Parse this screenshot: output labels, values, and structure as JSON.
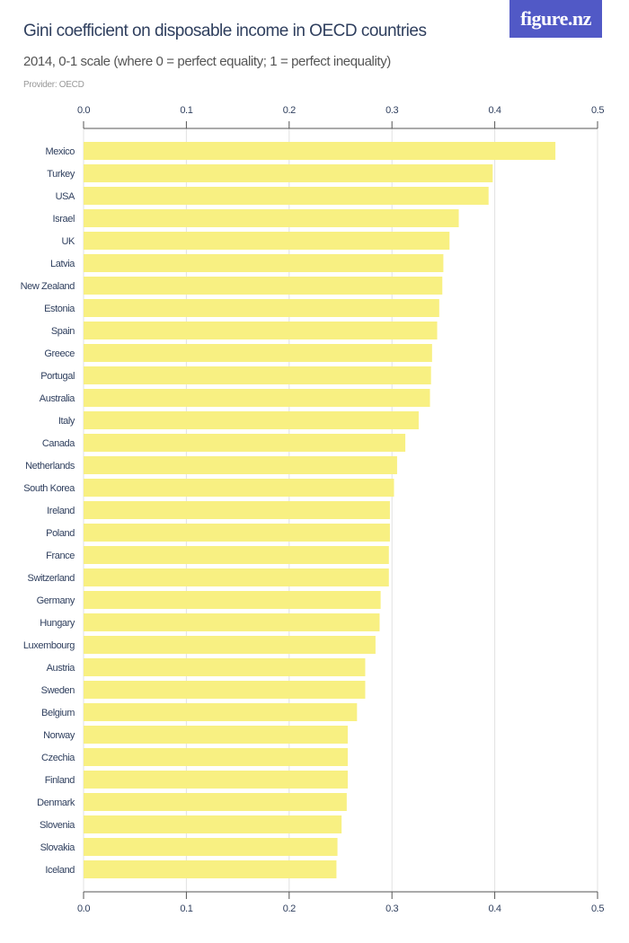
{
  "logo": "figure.nz",
  "chart_data": {
    "type": "bar",
    "orientation": "horizontal",
    "title": "Gini coefficient on disposable income in OECD countries",
    "subtitle": "2014, 0-1 scale (where 0 = perfect equality; 1 = perfect inequality)",
    "provider": "Provider: OECD",
    "xlim": [
      0,
      0.5
    ],
    "ticks": [
      "0.0",
      "0.1",
      "0.2",
      "0.3",
      "0.4",
      "0.5"
    ],
    "bar_color": "#f8f082",
    "categories": [
      "Mexico",
      "Turkey",
      "USA",
      "Israel",
      "UK",
      "Latvia",
      "New Zealand",
      "Estonia",
      "Spain",
      "Greece",
      "Portugal",
      "Australia",
      "Italy",
      "Canada",
      "Netherlands",
      "South Korea",
      "Ireland",
      "Poland",
      "France",
      "Switzerland",
      "Germany",
      "Hungary",
      "Luxembourg",
      "Austria",
      "Sweden",
      "Belgium",
      "Norway",
      "Czechia",
      "Finland",
      "Denmark",
      "Slovenia",
      "Slovakia",
      "Iceland"
    ],
    "values": [
      0.459,
      0.398,
      0.394,
      0.365,
      0.356,
      0.35,
      0.349,
      0.346,
      0.344,
      0.339,
      0.338,
      0.337,
      0.326,
      0.313,
      0.305,
      0.302,
      0.298,
      0.298,
      0.297,
      0.297,
      0.289,
      0.288,
      0.284,
      0.274,
      0.274,
      0.266,
      0.257,
      0.257,
      0.257,
      0.256,
      0.251,
      0.247,
      0.246
    ]
  }
}
